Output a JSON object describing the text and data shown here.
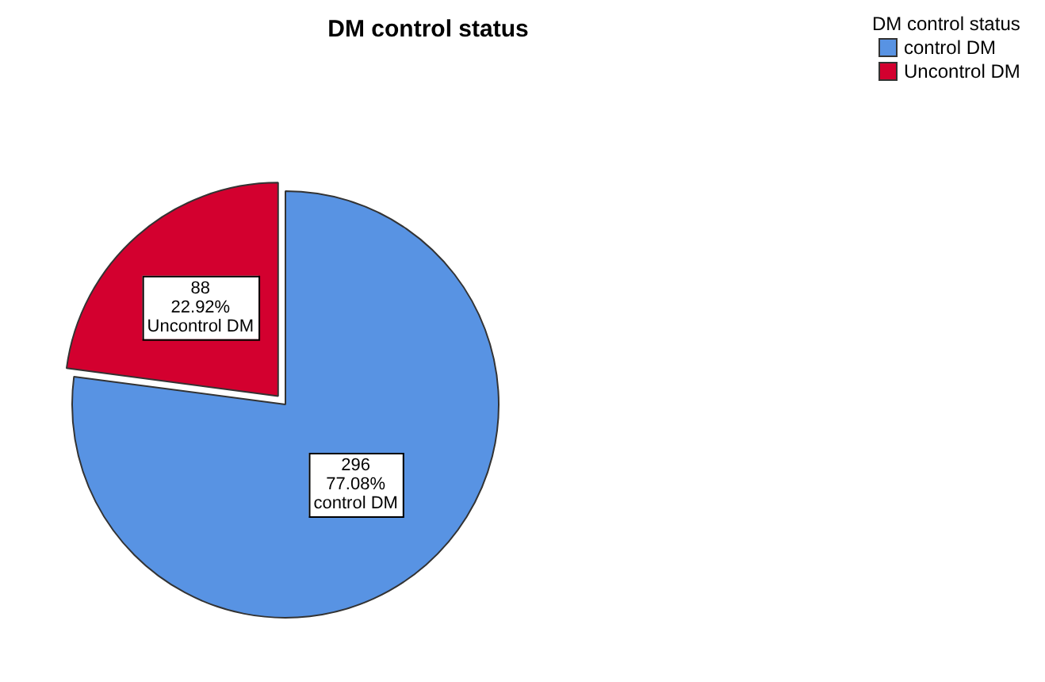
{
  "chart_data": {
    "type": "pie",
    "title": "DM control status",
    "legend_title": "DM control status",
    "legend": "top right",
    "categories": [
      "control DM",
      "Uncontrol DM"
    ],
    "values": [
      296,
      88
    ],
    "colors": [
      "#5893e3",
      "#d3002f"
    ],
    "value_labels": [
      "296\n77.08%\ncontrol DM",
      "88\n22.92%\nUncontrol DM"
    ]
  }
}
